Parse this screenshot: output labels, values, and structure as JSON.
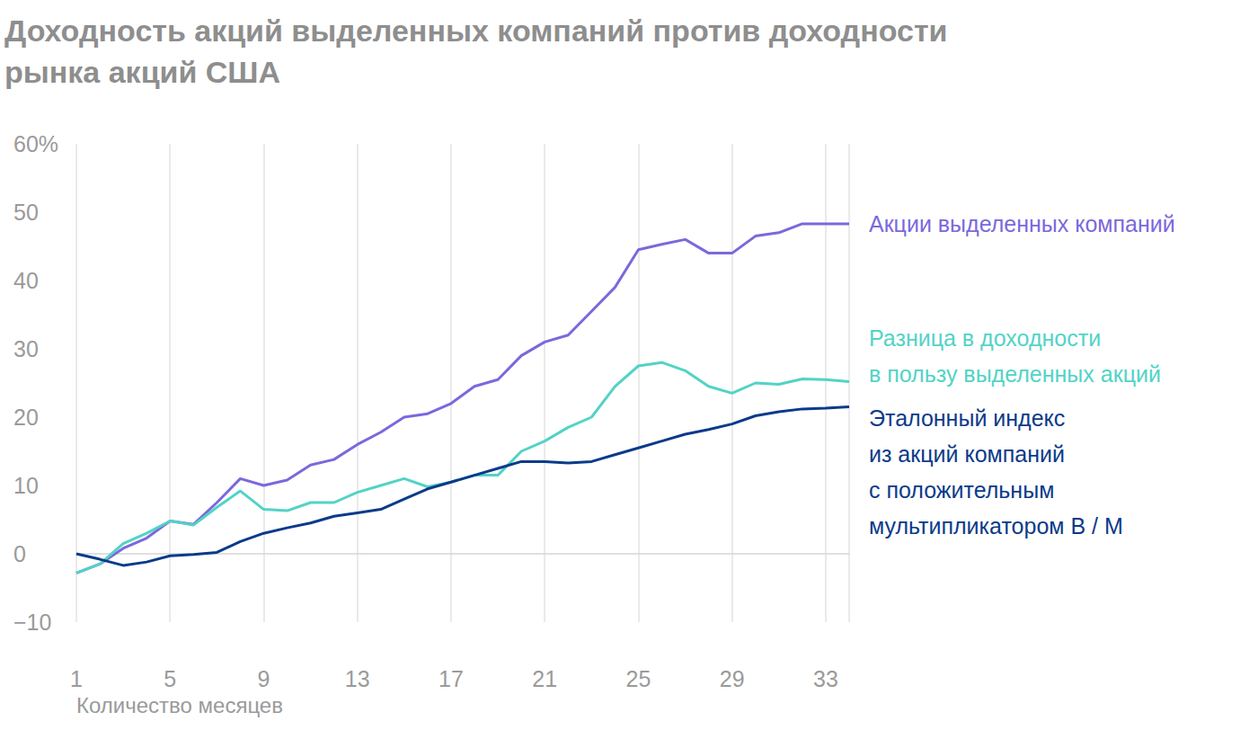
{
  "chart_data": {
    "type": "line",
    "title": "Доходность акций выделенных компаний против доходности\nрынка акций США",
    "x_label": "Количество месяцев",
    "x": [
      1,
      2,
      3,
      4,
      5,
      6,
      7,
      8,
      9,
      10,
      11,
      12,
      13,
      14,
      15,
      16,
      17,
      18,
      19,
      20,
      21,
      22,
      23,
      24,
      25,
      26,
      27,
      28,
      29,
      30,
      31,
      32,
      33,
      34
    ],
    "xlim": [
      1,
      34
    ],
    "xticks": [
      1,
      5,
      9,
      13,
      17,
      21,
      25,
      29,
      33
    ],
    "ylim": [
      -10,
      60
    ],
    "yticks": [
      {
        "value": -10,
        "label": "−10"
      },
      0,
      10,
      20,
      30,
      40,
      50,
      {
        "value": 60,
        "label": "60%"
      }
    ],
    "grid": "x",
    "series": [
      {
        "name": "Акции выделенных компаний",
        "color": "#7b68dc",
        "values": [
          -2.8,
          -1.5,
          0.8,
          2.3,
          4.8,
          4.3,
          7.5,
          11,
          10,
          10.8,
          13,
          13.8,
          16,
          17.8,
          20,
          20.5,
          22,
          24.5,
          25.5,
          29,
          31,
          32,
          35.5,
          39,
          44.5,
          45.3,
          46,
          44,
          44,
          46.5,
          47,
          48.3,
          48.3,
          48.3
        ]
      },
      {
        "name": "Разница в доходности\nв пользу выделенных акций",
        "color": "#52d3c6",
        "values": [
          -2.8,
          -1.5,
          1.5,
          3,
          4.8,
          4.2,
          6.8,
          9.2,
          6.5,
          6.3,
          7.5,
          7.5,
          9,
          10,
          11,
          9.8,
          10.5,
          11.5,
          11.5,
          15,
          16.5,
          18.5,
          20,
          24.5,
          27.5,
          28,
          26.8,
          24.5,
          23.5,
          25,
          24.8,
          25.6,
          25.5,
          25.2
        ]
      },
      {
        "name": "Эталонный индекс\nиз акций компаний\nс положительным\nмультипликатором B / M",
        "color": "#0b3a8a",
        "values": [
          0,
          -0.8,
          -1.7,
          -1.2,
          -0.3,
          -0.1,
          0.2,
          1.8,
          3,
          3.8,
          4.5,
          5.5,
          6,
          6.5,
          8,
          9.5,
          10.5,
          11.5,
          12.5,
          13.5,
          13.5,
          13.3,
          13.5,
          14.5,
          15.5,
          16.5,
          17.5,
          18.2,
          19,
          20.2,
          20.8,
          21.2,
          21.3,
          21.5
        ]
      }
    ]
  }
}
